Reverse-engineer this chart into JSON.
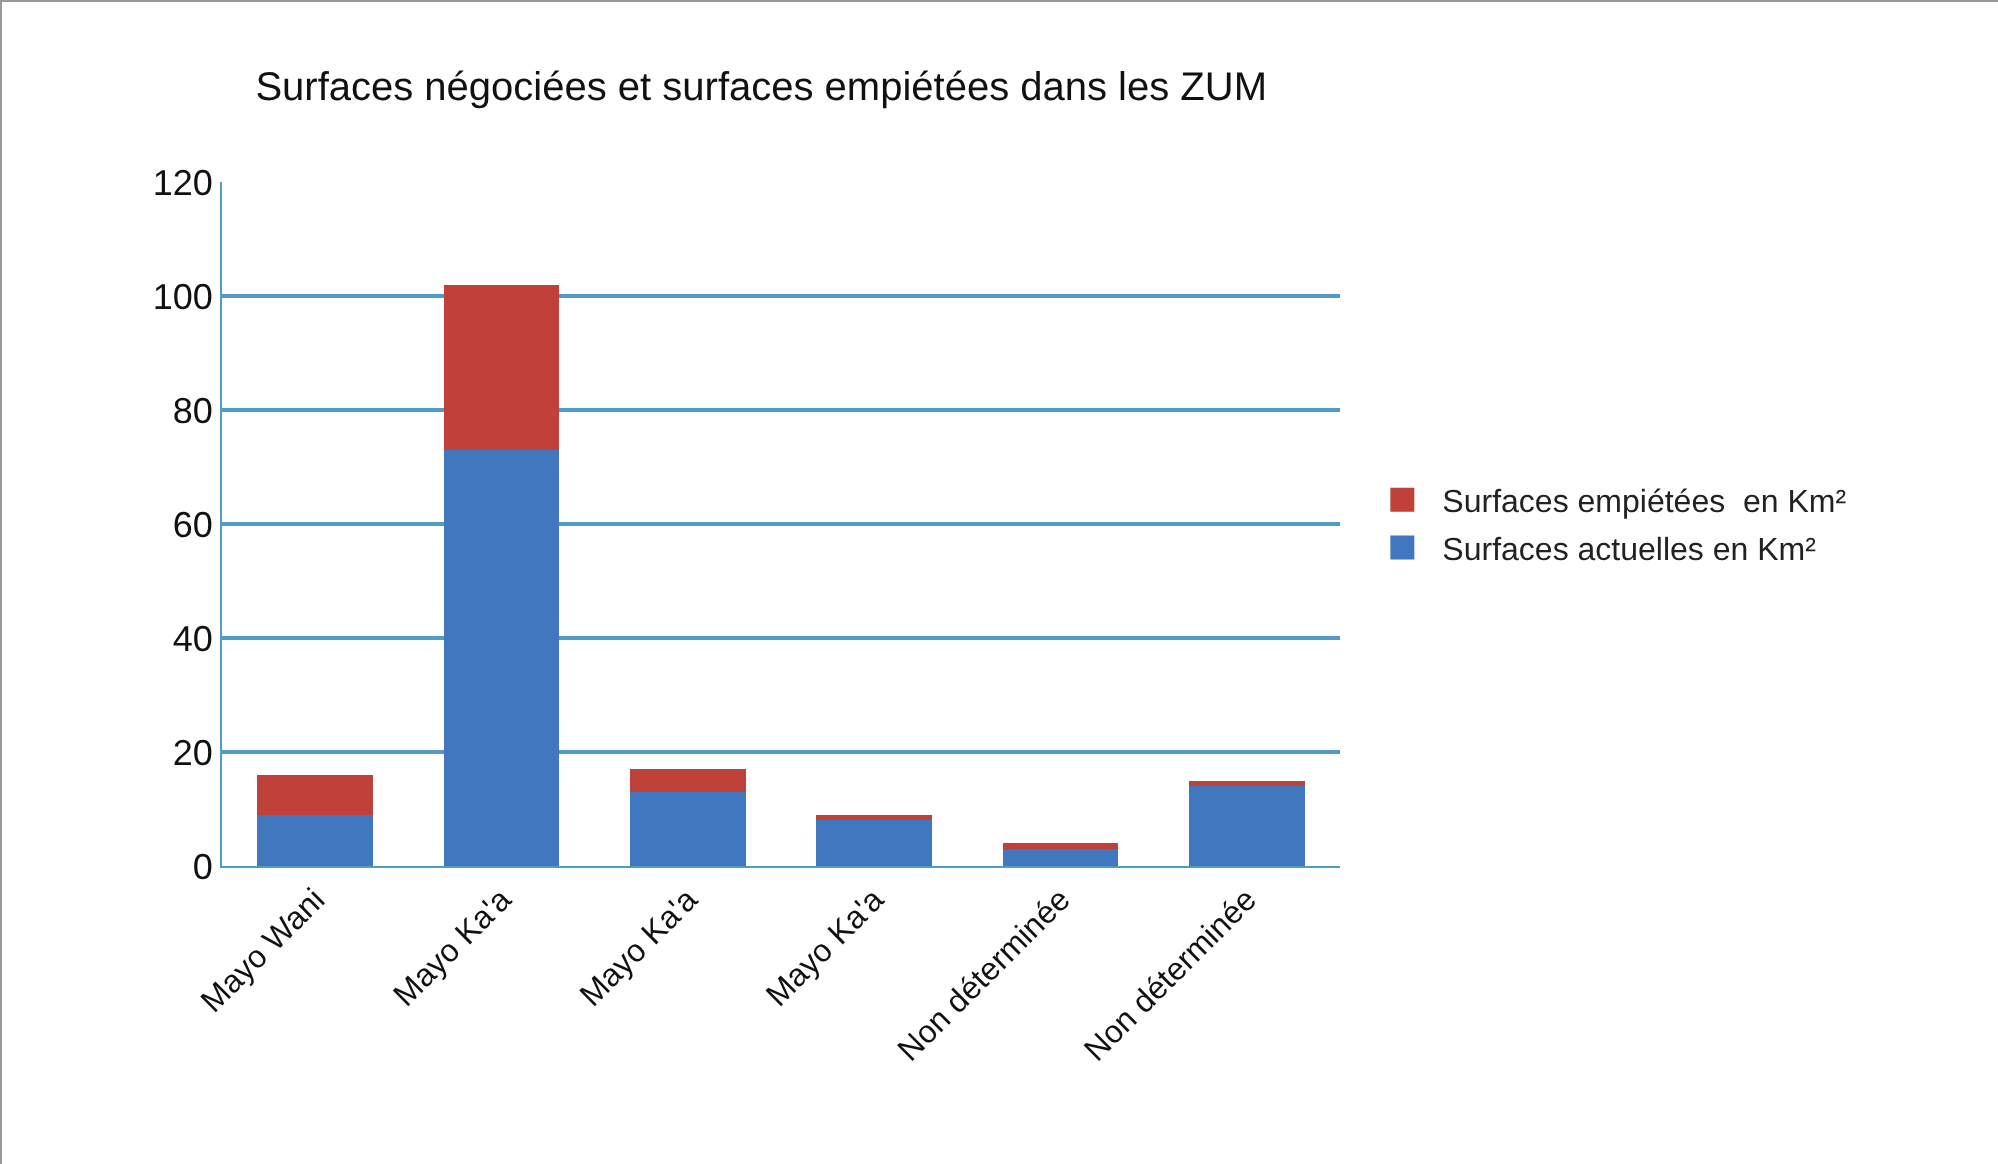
{
  "chart_data": {
    "type": "bar",
    "title": "Surfaces négociées et surfaces empiétées dans les ZUM",
    "categories": [
      "Mayo Wani",
      "Mayo Ka'a",
      "Mayo Ka'a",
      "Mayo Ka'a",
      "Non déterminée",
      "Non déterminée"
    ],
    "stacked": true,
    "series": [
      {
        "name": "Surfaces actuelles en Km²",
        "color": "#4077bf",
        "values": [
          9,
          73,
          13,
          8,
          3,
          14
        ]
      },
      {
        "name": "Surfaces empiétées  en Km²",
        "color": "#c0403a",
        "values": [
          7,
          29,
          4,
          1,
          1,
          1
        ]
      }
    ],
    "ylim": [
      0,
      120
    ],
    "yticks": [
      0,
      20,
      40,
      60,
      80,
      100,
      120
    ],
    "grid": "y",
    "legend": "right"
  }
}
